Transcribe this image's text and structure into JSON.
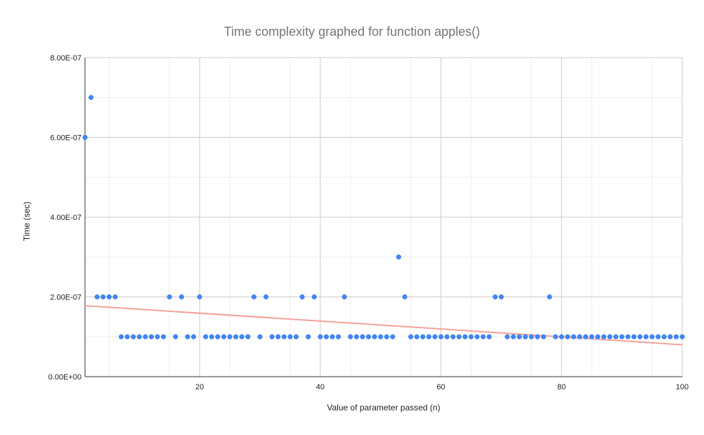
{
  "chart_data": {
    "type": "scatter",
    "title": "Time complexity graphed for function apples()",
    "xlabel": "Value of parameter passed (n)",
    "ylabel": "Time (sec)",
    "xlim": [
      1,
      100
    ],
    "ylim": [
      0,
      8e-07
    ],
    "x_ticks": [
      20,
      40,
      60,
      80,
      100
    ],
    "x_tick_labels": [
      "20",
      "40",
      "60",
      "80",
      "100"
    ],
    "y_ticks": [
      0,
      2e-07,
      4e-07,
      6e-07,
      8e-07
    ],
    "y_tick_labels": [
      "0.00E+00",
      "2.00E-07",
      "4.00E-07",
      "6.00E-07",
      "8.00E-07"
    ],
    "grid": true,
    "legend": "none",
    "series": [
      {
        "name": "Time (sec)",
        "color": "#4285f4",
        "x": [
          1,
          2,
          3,
          4,
          5,
          6,
          7,
          8,
          9,
          10,
          11,
          12,
          13,
          14,
          15,
          16,
          17,
          18,
          19,
          20,
          21,
          22,
          23,
          24,
          25,
          26,
          27,
          28,
          29,
          30,
          31,
          32,
          33,
          34,
          35,
          36,
          37,
          38,
          39,
          40,
          41,
          42,
          43,
          44,
          45,
          46,
          47,
          48,
          49,
          50,
          51,
          52,
          53,
          54,
          55,
          56,
          57,
          58,
          59,
          60,
          61,
          62,
          63,
          64,
          65,
          66,
          67,
          68,
          69,
          70,
          71,
          72,
          73,
          74,
          75,
          76,
          77,
          78,
          79,
          80,
          81,
          82,
          83,
          84,
          85,
          86,
          87,
          88,
          89,
          90,
          91,
          92,
          93,
          94,
          95,
          96,
          97,
          98,
          99,
          100
        ],
        "y": [
          6e-07,
          7e-07,
          2e-07,
          2e-07,
          2e-07,
          2e-07,
          1e-07,
          1e-07,
          1e-07,
          1e-07,
          1e-07,
          1e-07,
          1e-07,
          1e-07,
          2e-07,
          1e-07,
          2e-07,
          1e-07,
          1e-07,
          2e-07,
          1e-07,
          1e-07,
          1e-07,
          1e-07,
          1e-07,
          1e-07,
          1e-07,
          1e-07,
          2e-07,
          1e-07,
          2e-07,
          1e-07,
          1e-07,
          1e-07,
          1e-07,
          1e-07,
          2e-07,
          1e-07,
          2e-07,
          1e-07,
          1e-07,
          1e-07,
          1e-07,
          2e-07,
          1e-07,
          1e-07,
          1e-07,
          1e-07,
          1e-07,
          1e-07,
          1e-07,
          1e-07,
          3e-07,
          2e-07,
          1e-07,
          1e-07,
          1e-07,
          1e-07,
          1e-07,
          1e-07,
          1e-07,
          1e-07,
          1e-07,
          1e-07,
          1e-07,
          1e-07,
          1e-07,
          1e-07,
          2e-07,
          2e-07,
          1e-07,
          1e-07,
          1e-07,
          1e-07,
          1e-07,
          1e-07,
          1e-07,
          2e-07,
          1e-07,
          1e-07,
          1e-07,
          1e-07,
          1e-07,
          1e-07,
          1e-07,
          1e-07,
          1e-07,
          1e-07,
          1e-07,
          1e-07,
          1e-07,
          1e-07,
          1e-07,
          1e-07,
          1e-07,
          1e-07,
          1e-07,
          1e-07,
          1e-07,
          1e-07
        ]
      }
    ],
    "trendline": {
      "type": "linear",
      "color": "#f4a19b",
      "x": [
        1,
        100
      ],
      "y": [
        1.78e-07,
        8e-08
      ]
    }
  }
}
